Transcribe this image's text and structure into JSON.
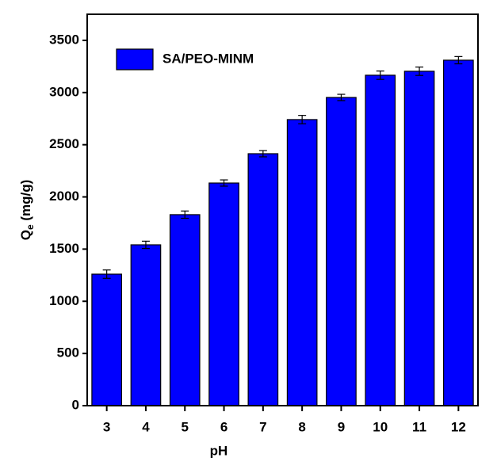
{
  "chart_data": {
    "type": "bar",
    "x_label": "pH",
    "y_label": {
      "main": "Q",
      "sub": "e",
      "unit": " (mg/g)"
    },
    "categories": [
      "3",
      "4",
      "5",
      "6",
      "7",
      "8",
      "9",
      "10",
      "11",
      "12"
    ],
    "series": [
      {
        "name": "SA/PEO-MINM",
        "color": "#0000ff",
        "values": [
          1260,
          1541,
          1830,
          2133,
          2414,
          2741,
          2953,
          3166,
          3204,
          3310
        ],
        "errors": [
          40,
          35,
          35,
          30,
          30,
          40,
          30,
          40,
          40,
          35
        ]
      }
    ],
    "ylim": [
      0,
      3750
    ],
    "yticks": [
      0,
      500,
      1000,
      1500,
      2000,
      2500,
      3000,
      3500
    ],
    "legend": "upper left"
  }
}
